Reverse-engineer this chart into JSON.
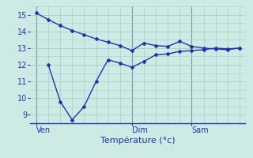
{
  "title": "",
  "xlabel": "Température (°c)",
  "ylabel": "",
  "background_color": "#ceeae4",
  "line_color": "#2233aa",
  "grid_color": "#aacccc",
  "x_tick_labels": [
    "Ven",
    "Dim",
    "Sam"
  ],
  "x_tick_positions": [
    0,
    8,
    13
  ],
  "ylim": [
    8.5,
    15.5
  ],
  "xlim": [
    -0.5,
    17.5
  ],
  "yticks": [
    9,
    10,
    11,
    12,
    13,
    14,
    15
  ],
  "series1_x": [
    0,
    1,
    2,
    3,
    4,
    5,
    6,
    7,
    8,
    9,
    10,
    11,
    12,
    13,
    14,
    15,
    16,
    17
  ],
  "series1_y": [
    15.1,
    14.7,
    14.35,
    14.05,
    13.8,
    13.55,
    13.35,
    13.15,
    12.85,
    13.3,
    13.15,
    13.1,
    13.4,
    13.1,
    13.0,
    12.95,
    12.9,
    13.0
  ],
  "series2_x": [
    1,
    2,
    3,
    4,
    5,
    6,
    7,
    8,
    9,
    10,
    11,
    12,
    13,
    14,
    15,
    16,
    17
  ],
  "series2_y": [
    12.0,
    9.8,
    8.7,
    9.5,
    11.0,
    12.3,
    12.1,
    11.85,
    12.2,
    12.6,
    12.65,
    12.8,
    12.85,
    12.9,
    13.0,
    12.95,
    13.0
  ],
  "vline_positions": [
    0,
    8,
    13
  ],
  "vline_color": "#7799aa",
  "xlabel_fontsize": 8,
  "tick_fontsize": 7
}
